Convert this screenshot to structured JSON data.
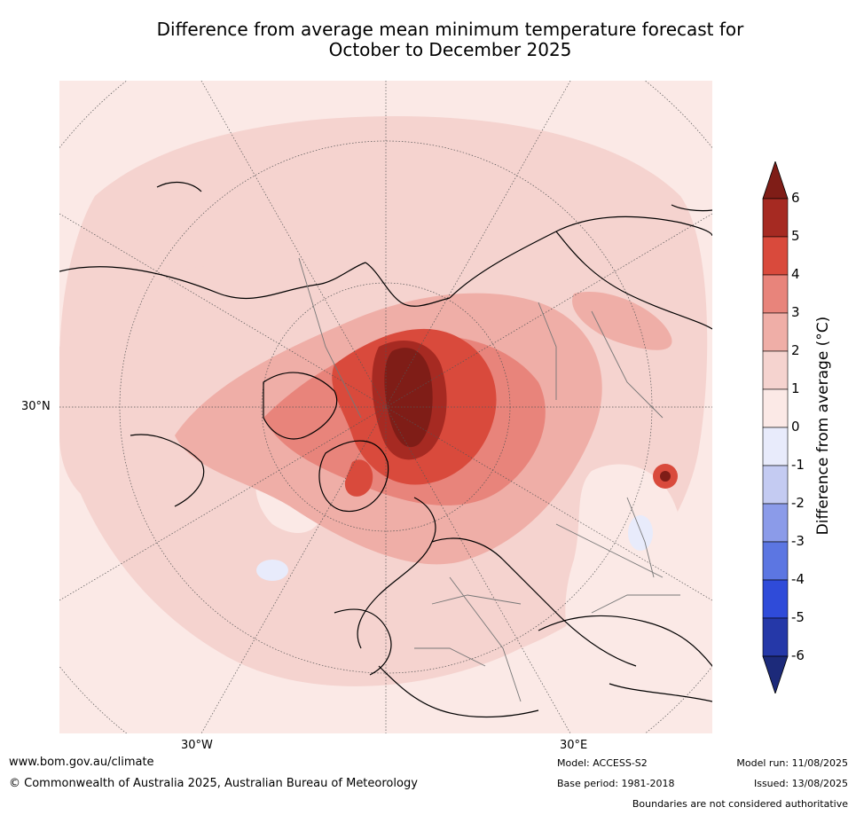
{
  "title_line1": "Difference from average mean minimum temperature forecast for",
  "title_line2": "October to December 2025",
  "map": {
    "lat_label": "30°N",
    "lon_labels": [
      "30°W",
      "30°E"
    ]
  },
  "colorbar": {
    "label": "Difference from average (°C)",
    "ticks": [
      "6",
      "5",
      "4",
      "3",
      "2",
      "1",
      "0",
      "-1",
      "-2",
      "-3",
      "-4",
      "-5",
      "-6"
    ],
    "colors": [
      "#7f1d17",
      "#a62a22",
      "#d94a3c",
      "#e8847b",
      "#efaea7",
      "#f5d3cf",
      "#fbe9e6",
      "#e8ebfb",
      "#c4cbf2",
      "#8b9be9",
      "#5c76e2",
      "#2f4bd9",
      "#2538a8",
      "#1c2a7a"
    ]
  },
  "footer": {
    "website": "www.bom.gov.au/climate",
    "copyright": "© Commonwealth of Australia 2025, Australian Bureau of Meteorology",
    "model": "Model: ACCESS-S2",
    "base_period": "Base period: 1981-2018",
    "model_run": "Model run: 11/08/2025",
    "issued": "Issued: 13/08/2025",
    "disclaimer": "Boundaries are not considered authoritative"
  }
}
